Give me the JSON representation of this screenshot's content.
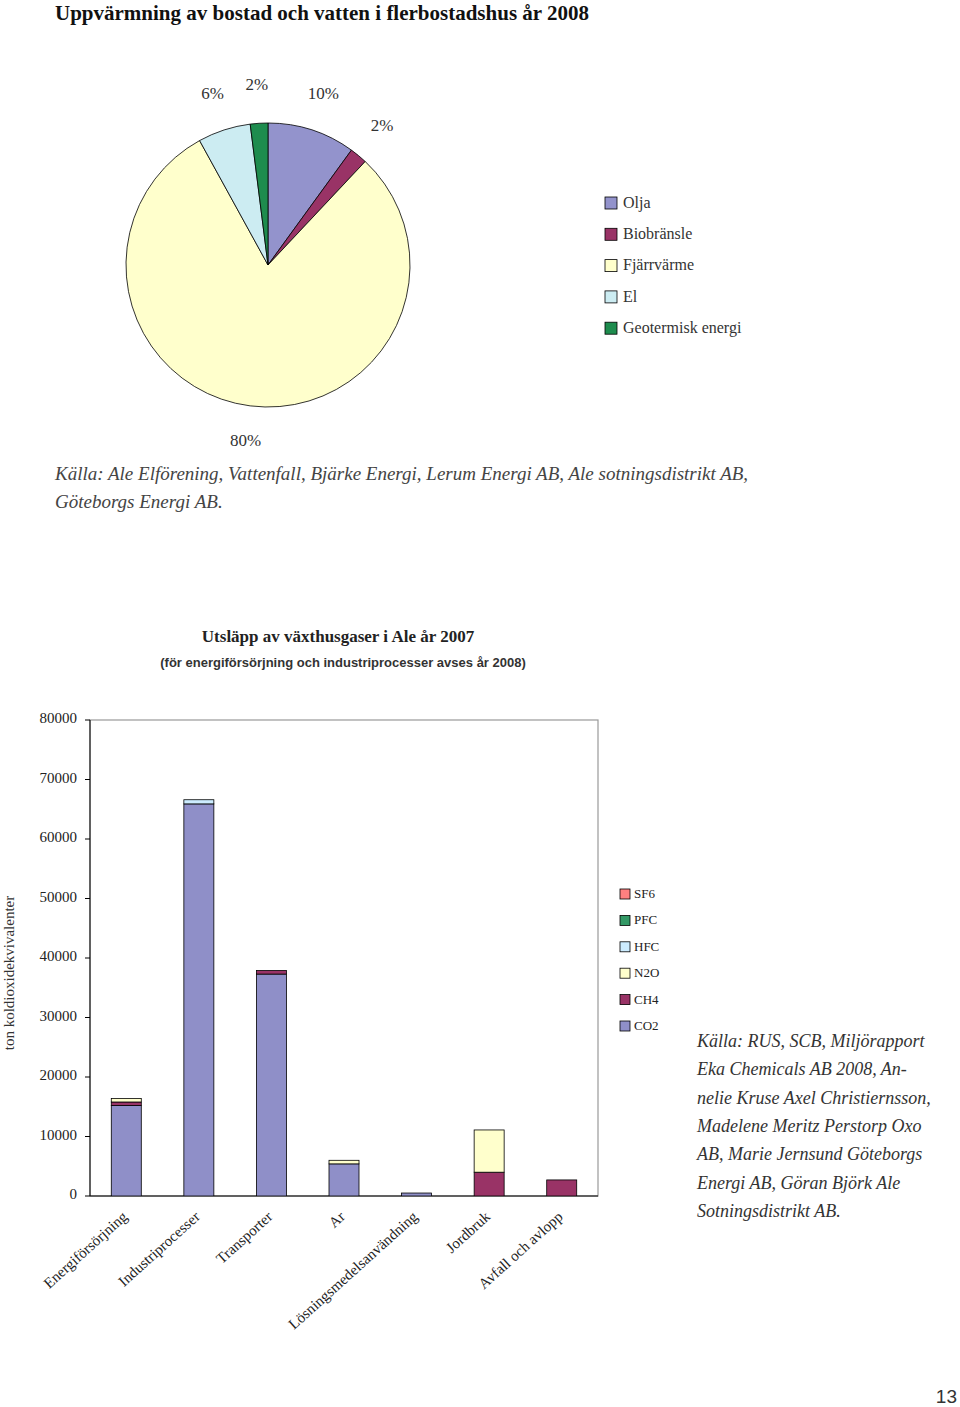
{
  "chart_data": [
    {
      "type": "pie",
      "title": "Uppvärmning av bostad och vatten i flerbostadshus år 2008",
      "categories": [
        "Olja",
        "Biobränsle",
        "Fjärrvärme",
        "El",
        "Geotermisk energi"
      ],
      "values": [
        10,
        2,
        80,
        6,
        2
      ],
      "value_labels": [
        "10%",
        "2%",
        "80%",
        "6%",
        "2%"
      ],
      "colors": [
        "#9393cc",
        "#993366",
        "#ffffcc",
        "#ccecf2",
        "#1e8c4e"
      ],
      "data_labels": true,
      "legend": "right",
      "source": [
        "Källa: Ale Elförening, Vattenfall, Bjärke Energi, Lerum Energi AB, Ale sotningsdistrikt AB,",
        "Göteborgs Energi AB."
      ]
    },
    {
      "type": "bar",
      "stacked": true,
      "title": "Utsläpp av växthusgaser i Ale år 2007",
      "subtitle": "(för energiförsörjning och industriprocesser avses år 2008)",
      "ylabel": "ton koldioxidekvivalenter",
      "categories": [
        "Energiförsörjning",
        "Industriprocesser",
        "Transporter",
        "Ar",
        "Lösningsmedelsanvändning",
        "Jordbruk",
        "Avfall och avlopp"
      ],
      "series": [
        {
          "name": "CO2",
          "color": "#8f8fc8",
          "values": [
            15200,
            65900,
            37300,
            5400,
            500,
            0,
            0
          ]
        },
        {
          "name": "CH4",
          "color": "#993366",
          "values": [
            600,
            0,
            600,
            0,
            0,
            4000,
            2700
          ]
        },
        {
          "name": "N2O",
          "color": "#ffffcc",
          "values": [
            600,
            0,
            0,
            600,
            0,
            7100,
            0
          ]
        },
        {
          "name": "HFC",
          "color": "#ccecff",
          "values": [
            0,
            700,
            0,
            0,
            0,
            0,
            0
          ]
        },
        {
          "name": "PFC",
          "color": "#339966",
          "values": [
            0,
            0,
            0,
            0,
            0,
            0,
            0
          ]
        },
        {
          "name": "SF6",
          "color": "#ff8080",
          "values": [
            0,
            0,
            0,
            0,
            0,
            0,
            0
          ]
        }
      ],
      "ylim": [
        0,
        80000
      ],
      "yticks": [
        0,
        10000,
        20000,
        30000,
        40000,
        50000,
        60000,
        70000,
        80000
      ],
      "grid": false,
      "legend": "right",
      "source": [
        "Källa: RUS, SCB, Miljörapport",
        "Eka Chemicals AB 2008, An-",
        "nelie Kruse Axel Christiernsson,",
        "Madelene Meritz Perstorp Oxo",
        "AB, Marie Jernsund Göteborgs",
        "Energi AB, Göran Björk Ale",
        "Sotningsdistrikt AB."
      ]
    }
  ],
  "page_number": "13"
}
